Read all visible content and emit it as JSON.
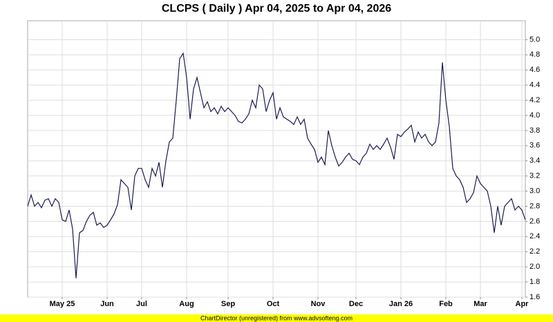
{
  "chart_data": {
    "type": "line",
    "title": "CLCPS ( Daily ) Apr 04, 2025 to Apr 04, 2026",
    "categories": [
      null,
      null,
      null,
      null,
      null,
      null,
      null,
      null,
      null,
      null,
      "May 25",
      null,
      null,
      null,
      null,
      null,
      null,
      null,
      null,
      null,
      null,
      null,
      null,
      "Jun",
      null,
      null,
      null,
      null,
      null,
      null,
      null,
      null,
      null,
      "Jul",
      null,
      null,
      null,
      null,
      null,
      null,
      null,
      null,
      null,
      null,
      null,
      null,
      "Aug",
      null,
      null,
      null,
      null,
      null,
      null,
      null,
      null,
      null,
      null,
      null,
      "Sep",
      null,
      null,
      null,
      null,
      null,
      null,
      null,
      null,
      null,
      null,
      null,
      null,
      "Oct",
      null,
      null,
      null,
      null,
      null,
      null,
      null,
      null,
      null,
      null,
      null,
      null,
      "Nov",
      null,
      null,
      null,
      null,
      null,
      null,
      null,
      null,
      null,
      null,
      "Dec",
      null,
      null,
      null,
      null,
      null,
      null,
      null,
      null,
      null,
      null,
      null,
      null,
      "Jan 26",
      null,
      null,
      null,
      null,
      null,
      null,
      null,
      null,
      null,
      null,
      null,
      null,
      "Feb",
      null,
      null,
      null,
      null,
      null,
      null,
      null,
      null,
      null,
      "Mar",
      null,
      null,
      null,
      null,
      null,
      null,
      null,
      null,
      null,
      null,
      null,
      "Apr",
      null
    ],
    "series": [
      {
        "color": "#1a1a4e",
        "values": [
          2.8,
          2.95,
          2.8,
          2.85,
          2.78,
          2.88,
          2.9,
          2.8,
          2.9,
          2.85,
          2.62,
          2.6,
          2.75,
          2.5,
          1.85,
          2.45,
          2.48,
          2.6,
          2.68,
          2.72,
          2.55,
          2.58,
          2.52,
          2.55,
          2.62,
          2.7,
          2.82,
          3.15,
          3.1,
          3.05,
          2.75,
          3.2,
          3.3,
          3.3,
          3.15,
          3.05,
          3.3,
          3.2,
          3.38,
          3.05,
          3.4,
          3.65,
          3.7,
          4.2,
          4.75,
          4.82,
          4.5,
          3.95,
          4.35,
          4.5,
          4.3,
          4.1,
          4.18,
          4.05,
          4.1,
          4.02,
          4.12,
          4.05,
          4.1,
          4.05,
          4.0,
          3.92,
          3.9,
          3.95,
          4.02,
          4.2,
          4.1,
          4.4,
          4.35,
          4.05,
          4.2,
          4.3,
          3.95,
          4.1,
          3.98,
          3.95,
          3.92,
          3.88,
          3.98,
          3.88,
          3.95,
          3.7,
          3.62,
          3.55,
          3.38,
          3.45,
          3.35,
          3.8,
          3.6,
          3.45,
          3.33,
          3.38,
          3.45,
          3.5,
          3.42,
          3.4,
          3.35,
          3.45,
          3.5,
          3.62,
          3.55,
          3.6,
          3.55,
          3.62,
          3.7,
          3.58,
          3.42,
          3.75,
          3.72,
          3.78,
          3.82,
          3.87,
          3.65,
          3.78,
          3.7,
          3.75,
          3.65,
          3.6,
          3.65,
          3.9,
          4.7,
          4.2,
          3.85,
          3.3,
          3.2,
          3.15,
          3.05,
          2.85,
          2.9,
          2.98,
          3.2,
          3.1,
          3.05,
          3.0,
          2.8,
          2.45,
          2.8,
          2.55,
          2.8,
          2.85,
          2.9,
          2.75,
          2.8,
          2.75,
          2.62
        ]
      }
    ],
    "ylim": [
      1.6,
      5.25
    ],
    "yticks": [
      1.6,
      1.8,
      {
        "value": 2,
        "label": "2.0"
      },
      2.2,
      2.4,
      2.6,
      2.8,
      {
        "value": 3,
        "label": "3.0"
      },
      3.2,
      3.4,
      3.6,
      3.8,
      {
        "value": 4,
        "label": "4.0"
      },
      4.2,
      4.4,
      4.6,
      4.8,
      {
        "value": 5,
        "label": "5.0"
      }
    ],
    "grid": true
  },
  "footer": "ChartDirector (unregistered) from www.advsofteng.com"
}
